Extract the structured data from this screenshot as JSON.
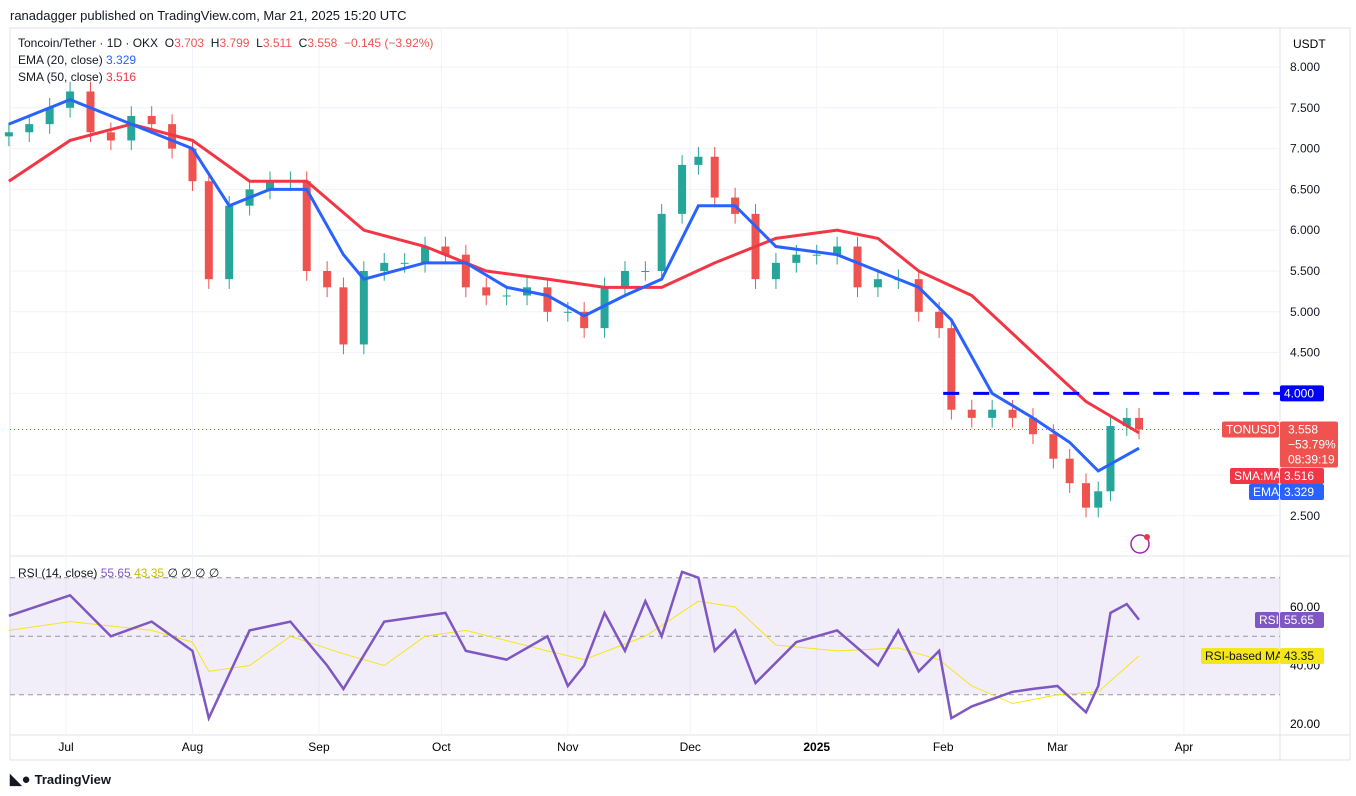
{
  "header": {
    "published": "ranadagger published on TradingView.com, Mar 21, 2025 15:20 UTC"
  },
  "legend": {
    "symbol": "Toncoin/Tether · 1D · OKX",
    "o_label": "O",
    "o": "3.703",
    "h_label": "H",
    "h": "3.799",
    "l_label": "L",
    "l": "3.511",
    "c_label": "C",
    "c": "3.558",
    "change": "−0.145 (−3.92%)",
    "ema_label": "EMA (20, close)",
    "ema": "3.329",
    "sma_label": "SMA (50, close)",
    "sma": "3.516",
    "rsi_label": "RSI (14, close)",
    "rsi": "55.65",
    "rsi_ma": "43.35",
    "rsi_extra": "∅ ∅ ∅ ∅"
  },
  "axis": {
    "currency": "USDT",
    "price_ticks": [
      "8.000",
      "7.500",
      "7.000",
      "6.500",
      "6.000",
      "5.500",
      "5.000",
      "4.500",
      "2.500"
    ],
    "rsi_ticks": [
      "60.00",
      "40.00",
      "20.00"
    ],
    "time_ticks": [
      "Jul",
      "Aug",
      "Sep",
      "Oct",
      "Nov",
      "Dec",
      "2025",
      "Feb",
      "Mar",
      "Apr"
    ]
  },
  "labels": {
    "level": "4.000",
    "ticker": "TONUSDT",
    "last": "3.558",
    "pct": "−53.79%",
    "countdown": "08:39:19",
    "sma_tag": "SMA:MA",
    "sma_val": "3.516",
    "ema_tag": "EMA",
    "ema_val": "3.329",
    "rsi_tag": "RSI",
    "rsi_val": "55.65",
    "rsima_tag": "RSI-based MA",
    "rsima_val": "43.35"
  },
  "footer": {
    "brand": "TradingView"
  },
  "colors": {
    "up": "#26a69a",
    "down": "#ef5350",
    "ema": "#2962ff",
    "sma": "#f23645",
    "rsi": "#7e57c2",
    "rsi_ma": "#f5e51b",
    "level": "#0000ff"
  },
  "chart_data": {
    "type": "candlestick",
    "title": "Toncoin/Tether · 1D · OKX",
    "ylim": [
      2.2,
      8.3
    ],
    "resistance_level": 4.0,
    "closes": [
      [
        "2024-06-17",
        7.2
      ],
      [
        "2024-06-22",
        7.3
      ],
      [
        "2024-06-27",
        7.5
      ],
      [
        "2024-07-02",
        7.7
      ],
      [
        "2024-07-07",
        7.2
      ],
      [
        "2024-07-12",
        7.1
      ],
      [
        "2024-07-17",
        7.4
      ],
      [
        "2024-07-22",
        7.3
      ],
      [
        "2024-07-27",
        7.0
      ],
      [
        "2024-08-01",
        6.6
      ],
      [
        "2024-08-05",
        5.4
      ],
      [
        "2024-08-10",
        6.3
      ],
      [
        "2024-08-15",
        6.5
      ],
      [
        "2024-08-20",
        6.6
      ],
      [
        "2024-08-25",
        6.6
      ],
      [
        "2024-08-29",
        5.5
      ],
      [
        "2024-09-03",
        5.3
      ],
      [
        "2024-09-07",
        4.6
      ],
      [
        "2024-09-12",
        5.5
      ],
      [
        "2024-09-17",
        5.6
      ],
      [
        "2024-09-22",
        5.6
      ],
      [
        "2024-09-27",
        5.8
      ],
      [
        "2024-10-02",
        5.7
      ],
      [
        "2024-10-07",
        5.3
      ],
      [
        "2024-10-12",
        5.2
      ],
      [
        "2024-10-17",
        5.2
      ],
      [
        "2024-10-22",
        5.3
      ],
      [
        "2024-10-27",
        5.0
      ],
      [
        "2024-11-01",
        5.0
      ],
      [
        "2024-11-05",
        4.8
      ],
      [
        "2024-11-10",
        5.3
      ],
      [
        "2024-11-15",
        5.5
      ],
      [
        "2024-11-20",
        5.5
      ],
      [
        "2024-11-24",
        6.2
      ],
      [
        "2024-11-29",
        6.8
      ],
      [
        "2024-12-03",
        6.9
      ],
      [
        "2024-12-07",
        6.4
      ],
      [
        "2024-12-12",
        6.2
      ],
      [
        "2024-12-17",
        5.4
      ],
      [
        "2024-12-22",
        5.6
      ],
      [
        "2024-12-27",
        5.7
      ],
      [
        "2025-01-01",
        5.7
      ],
      [
        "2025-01-06",
        5.8
      ],
      [
        "2025-01-11",
        5.3
      ],
      [
        "2025-01-16",
        5.4
      ],
      [
        "2025-01-21",
        5.4
      ],
      [
        "2025-01-26",
        5.0
      ],
      [
        "2025-01-31",
        4.8
      ],
      [
        "2025-02-03",
        3.8
      ],
      [
        "2025-02-08",
        3.7
      ],
      [
        "2025-02-13",
        3.8
      ],
      [
        "2025-02-18",
        3.7
      ],
      [
        "2025-02-23",
        3.5
      ],
      [
        "2025-02-28",
        3.2
      ],
      [
        "2025-03-04",
        2.9
      ],
      [
        "2025-03-08",
        2.6
      ],
      [
        "2025-03-11",
        2.8
      ],
      [
        "2025-03-14",
        3.6
      ],
      [
        "2025-03-18",
        3.7
      ],
      [
        "2025-03-21",
        3.558
      ]
    ],
    "ema20": [
      [
        "2024-06-17",
        7.3
      ],
      [
        "2024-07-02",
        7.6
      ],
      [
        "2024-07-17",
        7.3
      ],
      [
        "2024-08-01",
        7.0
      ],
      [
        "2024-08-10",
        6.3
      ],
      [
        "2024-08-20",
        6.5
      ],
      [
        "2024-08-29",
        6.5
      ],
      [
        "2024-09-07",
        5.7
      ],
      [
        "2024-09-12",
        5.4
      ],
      [
        "2024-09-27",
        5.6
      ],
      [
        "2024-10-07",
        5.6
      ],
      [
        "2024-10-17",
        5.3
      ],
      [
        "2024-10-27",
        5.2
      ],
      [
        "2024-11-05",
        4.95
      ],
      [
        "2024-11-15",
        5.2
      ],
      [
        "2024-11-24",
        5.4
      ],
      [
        "2024-12-03",
        6.3
      ],
      [
        "2024-12-12",
        6.3
      ],
      [
        "2024-12-22",
        5.8
      ],
      [
        "2025-01-06",
        5.7
      ],
      [
        "2025-01-16",
        5.5
      ],
      [
        "2025-01-26",
        5.3
      ],
      [
        "2025-02-03",
        4.9
      ],
      [
        "2025-02-13",
        4.0
      ],
      [
        "2025-02-23",
        3.7
      ],
      [
        "2025-03-04",
        3.4
      ],
      [
        "2025-03-11",
        3.05
      ],
      [
        "2025-03-21",
        3.329
      ]
    ],
    "sma50": [
      [
        "2024-06-17",
        6.6
      ],
      [
        "2024-07-02",
        7.1
      ],
      [
        "2024-07-17",
        7.3
      ],
      [
        "2024-08-01",
        7.1
      ],
      [
        "2024-08-15",
        6.6
      ],
      [
        "2024-08-29",
        6.6
      ],
      [
        "2024-09-12",
        6.0
      ],
      [
        "2024-09-27",
        5.8
      ],
      [
        "2024-10-12",
        5.5
      ],
      [
        "2024-10-27",
        5.4
      ],
      [
        "2024-11-10",
        5.3
      ],
      [
        "2024-11-24",
        5.3
      ],
      [
        "2024-12-07",
        5.6
      ],
      [
        "2024-12-22",
        5.9
      ],
      [
        "2025-01-06",
        6.0
      ],
      [
        "2025-01-16",
        5.9
      ],
      [
        "2025-01-26",
        5.5
      ],
      [
        "2025-02-08",
        5.2
      ],
      [
        "2025-02-23",
        4.5
      ],
      [
        "2025-03-08",
        3.9
      ],
      [
        "2025-03-21",
        3.516
      ]
    ],
    "rsi": [
      [
        "2024-06-17",
        57
      ],
      [
        "2024-07-02",
        64
      ],
      [
        "2024-07-12",
        50
      ],
      [
        "2024-07-22",
        55
      ],
      [
        "2024-08-01",
        45
      ],
      [
        "2024-08-05",
        22
      ],
      [
        "2024-08-15",
        52
      ],
      [
        "2024-08-25",
        55
      ],
      [
        "2024-09-03",
        40
      ],
      [
        "2024-09-07",
        32
      ],
      [
        "2024-09-17",
        55
      ],
      [
        "2024-09-27",
        57
      ],
      [
        "2024-10-02",
        58
      ],
      [
        "2024-10-07",
        45
      ],
      [
        "2024-10-17",
        42
      ],
      [
        "2024-10-27",
        50
      ],
      [
        "2024-11-01",
        33
      ],
      [
        "2024-11-05",
        40
      ],
      [
        "2024-11-10",
        58
      ],
      [
        "2024-11-15",
        45
      ],
      [
        "2024-11-20",
        62
      ],
      [
        "2024-11-24",
        50
      ],
      [
        "2024-11-29",
        72
      ],
      [
        "2024-12-03",
        70
      ],
      [
        "2024-12-07",
        45
      ],
      [
        "2024-12-12",
        52
      ],
      [
        "2024-12-17",
        34
      ],
      [
        "2024-12-27",
        48
      ],
      [
        "2025-01-06",
        52
      ],
      [
        "2025-01-16",
        40
      ],
      [
        "2025-01-21",
        52
      ],
      [
        "2025-01-26",
        38
      ],
      [
        "2025-01-31",
        45
      ],
      [
        "2025-02-03",
        22
      ],
      [
        "2025-02-08",
        26
      ],
      [
        "2025-02-18",
        31
      ],
      [
        "2025-02-23",
        32
      ],
      [
        "2025-03-01",
        33
      ],
      [
        "2025-03-08",
        24
      ],
      [
        "2025-03-11",
        33
      ],
      [
        "2025-03-14",
        58
      ],
      [
        "2025-03-18",
        61
      ],
      [
        "2025-03-21",
        55.65
      ]
    ],
    "rsi_ma": [
      [
        "2024-06-17",
        52
      ],
      [
        "2024-07-02",
        55
      ],
      [
        "2024-07-22",
        52
      ],
      [
        "2024-08-01",
        48
      ],
      [
        "2024-08-05",
        38
      ],
      [
        "2024-08-15",
        40
      ],
      [
        "2024-08-25",
        50
      ],
      [
        "2024-09-07",
        44
      ],
      [
        "2024-09-17",
        40
      ],
      [
        "2024-09-27",
        50
      ],
      [
        "2024-10-07",
        52
      ],
      [
        "2024-10-27",
        45
      ],
      [
        "2024-11-05",
        42
      ],
      [
        "2024-11-20",
        50
      ],
      [
        "2024-12-03",
        62
      ],
      [
        "2024-12-12",
        60
      ],
      [
        "2024-12-22",
        47
      ],
      [
        "2025-01-06",
        45
      ],
      [
        "2025-01-21",
        46
      ],
      [
        "2025-01-31",
        42
      ],
      [
        "2025-02-08",
        33
      ],
      [
        "2025-02-18",
        27
      ],
      [
        "2025-03-01",
        30
      ],
      [
        "2025-03-11",
        31
      ],
      [
        "2025-03-21",
        43.35
      ]
    ],
    "rsi_bands": [
      30,
      70
    ]
  }
}
